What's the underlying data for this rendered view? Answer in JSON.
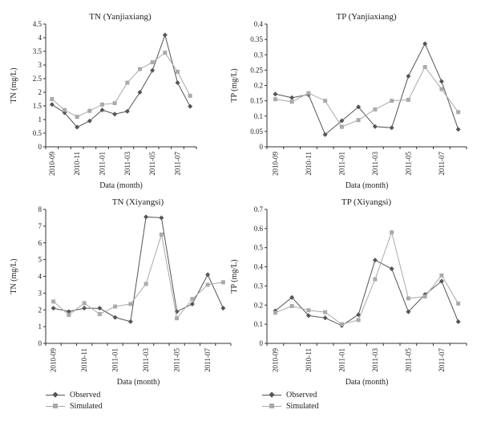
{
  "colors": {
    "observed": "#555555",
    "simulated": "#aaaaaa",
    "axis": "#333333"
  },
  "legend": {
    "observed": "Observed",
    "simulated": "Simulated"
  },
  "chart_data": [
    {
      "type": "line",
      "title": "TN (Yanjiaxiang)",
      "xlabel": "Data (month)",
      "ylabel": "TN (mg/L)",
      "ylim": [
        0,
        4.5
      ],
      "yticks": [
        "0",
        "0.5",
        "1",
        "1.5",
        "2",
        "2.5",
        "3",
        "3.5",
        "4",
        "4.5"
      ],
      "categories": [
        "2010-09",
        "2010-10",
        "2010-11",
        "2010-12",
        "2011-01",
        "2011-02",
        "2011-03",
        "2011-04",
        "2011-05",
        "2011-06",
        "2011-07",
        "2011-08"
      ],
      "tick_labels": [
        "2010-09",
        "2010-11",
        "2011-01",
        "2011-03",
        "2011-05",
        "2011-07"
      ],
      "series": [
        {
          "name": "Observed",
          "values": [
            1.55,
            1.25,
            0.72,
            0.95,
            1.35,
            1.2,
            1.3,
            2.0,
            2.8,
            4.1,
            2.35,
            1.48
          ]
        },
        {
          "name": "Simulated",
          "values": [
            1.75,
            1.35,
            1.1,
            1.32,
            1.55,
            1.6,
            2.35,
            2.85,
            3.1,
            3.45,
            2.75,
            1.87
          ]
        }
      ]
    },
    {
      "type": "line",
      "title": "TP (Yanjiaxiang)",
      "xlabel": "Data (month)",
      "ylabel": "TP (mg/L)",
      "ylim": [
        0,
        0.4
      ],
      "yticks": [
        "0",
        "0.05",
        "0.1",
        "0.15",
        "0.2",
        "0.25",
        "0.3",
        "0.35",
        "0.4"
      ],
      "categories": [
        "2010-09",
        "2010-10",
        "2010-11",
        "2010-12",
        "2011-01",
        "2011-02",
        "2011-03",
        "2011-04",
        "2011-05",
        "2011-06",
        "2011-07",
        "2011-08"
      ],
      "tick_labels": [
        "2010-09",
        "2010-11",
        "2011-01",
        "2011-03",
        "2011-05",
        "2011-07"
      ],
      "series": [
        {
          "name": "Observed",
          "values": [
            0.172,
            0.16,
            0.17,
            0.04,
            0.085,
            0.13,
            0.066,
            0.062,
            0.23,
            0.336,
            0.213,
            0.057
          ]
        },
        {
          "name": "Simulated",
          "values": [
            0.155,
            0.147,
            0.175,
            0.15,
            0.065,
            0.087,
            0.122,
            0.15,
            0.153,
            0.26,
            0.188,
            0.113
          ]
        }
      ]
    },
    {
      "type": "line",
      "title": "TN (Xiyangsi)",
      "xlabel": "Data (month)",
      "ylabel": "TN (mg/L)",
      "ylim": [
        0,
        8
      ],
      "yticks": [
        "0",
        "1",
        "2",
        "3",
        "4",
        "5",
        "6",
        "7",
        "8"
      ],
      "categories": [
        "2010-09",
        "2010-10",
        "2010-11",
        "2010-12",
        "2011-01",
        "2011-02",
        "2011-03",
        "2011-04",
        "2011-05",
        "2011-06",
        "2011-07",
        "2011-08"
      ],
      "tick_labels": [
        "2010-09",
        "2010-11",
        "2011-01",
        "2011-03",
        "2011-05",
        "2011-07"
      ],
      "series": [
        {
          "name": "Observed",
          "values": [
            2.1,
            1.9,
            2.1,
            2.1,
            1.55,
            1.3,
            7.55,
            7.5,
            1.9,
            2.35,
            4.1,
            2.1
          ]
        },
        {
          "name": "Simulated",
          "values": [
            2.5,
            1.7,
            2.4,
            1.75,
            2.2,
            2.35,
            3.55,
            6.5,
            1.5,
            2.65,
            3.5,
            3.65
          ]
        }
      ]
    },
    {
      "type": "line",
      "title": "TP (Xiyangsi)",
      "xlabel": "Data (month)",
      "ylabel": "TP (mg/L)",
      "ylim": [
        0,
        0.7
      ],
      "yticks": [
        "0",
        "0.1",
        "0.2",
        "0.3",
        "0.4",
        "0.5",
        "0.6",
        "0.7"
      ],
      "categories": [
        "2010-09",
        "2010-10",
        "2010-11",
        "2010-12",
        "2011-01",
        "2011-02",
        "2011-03",
        "2011-04",
        "2011-05",
        "2011-06",
        "2011-07",
        "2011-08"
      ],
      "tick_labels": [
        "2010-09",
        "2010-11",
        "2011-01",
        "2011-03",
        "2011-05",
        "2011-07"
      ],
      "series": [
        {
          "name": "Observed",
          "values": [
            0.17,
            0.24,
            0.145,
            0.133,
            0.093,
            0.15,
            0.435,
            0.39,
            0.165,
            0.255,
            0.325,
            0.113
          ]
        },
        {
          "name": "Simulated",
          "values": [
            0.16,
            0.195,
            0.173,
            0.163,
            0.1,
            0.122,
            0.335,
            0.58,
            0.235,
            0.245,
            0.355,
            0.208
          ]
        }
      ]
    }
  ]
}
